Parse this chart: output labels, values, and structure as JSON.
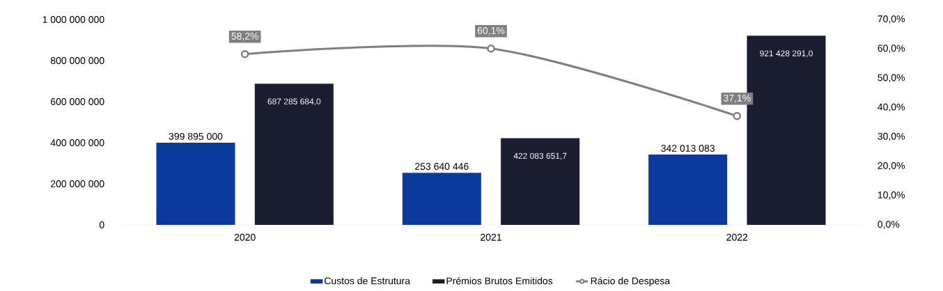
{
  "chart_data": {
    "type": "bar",
    "categories": [
      "2020",
      "2021",
      "2022"
    ],
    "series": [
      {
        "name": "Custos de Estrutura",
        "color": "#0b3a9c",
        "values": [
          399895000,
          253640446,
          342013083
        ],
        "value_labels": [
          "399 895 000",
          "253 640 446",
          "342 013 083"
        ]
      },
      {
        "name": "Prémios Brutos Emitidos",
        "color": "#1b1e33",
        "values": [
          687285684,
          422083651.7,
          921428291
        ],
        "value_labels": [
          "687 285 684,0",
          "422 083 651,7",
          "921 428 291,0"
        ]
      },
      {
        "name": "Rácio de Despesa",
        "type": "line",
        "axis": "y2",
        "marker": "circle",
        "color": "#7f7f7f",
        "values": [
          58.2,
          60.1,
          37.1
        ],
        "value_labels": [
          "58,2%",
          "60,1%",
          "37,1%"
        ]
      }
    ],
    "ylim": [
      0,
      1000000000
    ],
    "yticks": [
      {
        "value": 0,
        "label": "0"
      },
      {
        "value": 200000000,
        "label": "200 000 000"
      },
      {
        "value": 400000000,
        "label": "400 000 000"
      },
      {
        "value": 600000000,
        "label": "600 000 000"
      },
      {
        "value": 800000000,
        "label": "800 000 000"
      },
      {
        "value": 1000000000,
        "label": "1 000 000 000"
      }
    ],
    "y2lim": [
      0,
      70
    ],
    "y2ticks": [
      {
        "value": 0,
        "label": "0,0%"
      },
      {
        "value": 10,
        "label": "10,0%"
      },
      {
        "value": 20,
        "label": "20,0%"
      },
      {
        "value": 30,
        "label": "30,0%"
      },
      {
        "value": 40,
        "label": "40,0%"
      },
      {
        "value": 50,
        "label": "50,0%"
      },
      {
        "value": 60,
        "label": "60,0%"
      },
      {
        "value": 70,
        "label": "70,0%"
      }
    ],
    "legend": "bottom"
  }
}
